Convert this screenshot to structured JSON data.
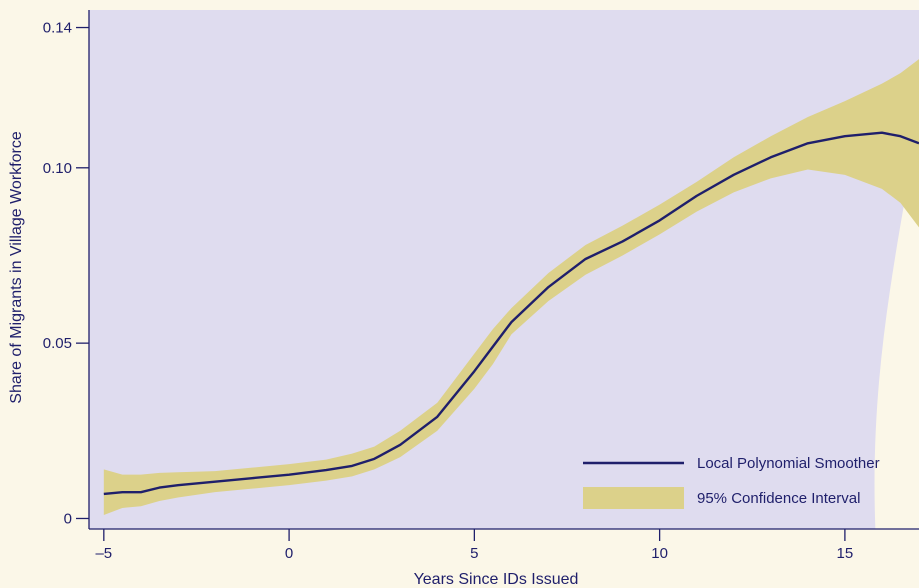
{
  "chart_data": {
    "type": "line",
    "title": "",
    "xlabel": "Years Since IDs Issued",
    "ylabel": "Share of Migrants in Village Workforce",
    "xlim": [
      -5.4,
      17
    ],
    "ylim": [
      -0.003,
      0.145
    ],
    "x_ticks": [
      -5,
      0,
      5,
      10,
      15
    ],
    "x_tick_labels": [
      "–5",
      "0",
      "5",
      "10",
      "15"
    ],
    "y_ticks": [
      0,
      0.05,
      0.1,
      0.14
    ],
    "y_tick_labels": [
      "0",
      "0.05",
      "0.10",
      "0.14"
    ],
    "grid": false,
    "legend_position": "bottom-right",
    "series": [
      {
        "name": "Local Polynomial Smoother",
        "kind": "line",
        "color": "#1f1f6b",
        "x": [
          -5,
          -4.5,
          -4,
          -3.5,
          -3,
          -2,
          -1,
          0,
          1,
          1.7,
          2.3,
          3,
          4,
          5,
          5.5,
          6,
          7,
          8,
          9,
          10,
          11,
          12,
          13,
          14,
          15,
          16,
          16.5,
          17
        ],
        "values": [
          0.007,
          0.0075,
          0.0075,
          0.0088,
          0.0095,
          0.0105,
          0.0115,
          0.0125,
          0.0138,
          0.015,
          0.017,
          0.021,
          0.029,
          0.042,
          0.049,
          0.056,
          0.066,
          0.074,
          0.079,
          0.085,
          0.092,
          0.098,
          0.103,
          0.107,
          0.109,
          0.11,
          0.109,
          0.107
        ]
      },
      {
        "name": "95% Confidence Interval",
        "kind": "band",
        "color": "#dcd18a",
        "x": [
          -5,
          -4.5,
          -4,
          -3.5,
          -3,
          -2,
          -1,
          0,
          1,
          1.7,
          2.3,
          3,
          4,
          5,
          5.5,
          6,
          7,
          8,
          9,
          10,
          11,
          12,
          13,
          14,
          15,
          16,
          16.5,
          17
        ],
        "lower": [
          0.001,
          0.003,
          0.0035,
          0.005,
          0.006,
          0.0075,
          0.0085,
          0.0095,
          0.0108,
          0.012,
          0.014,
          0.0175,
          0.025,
          0.037,
          0.044,
          0.0525,
          0.062,
          0.0695,
          0.075,
          0.081,
          0.0875,
          0.093,
          0.097,
          0.0995,
          0.098,
          0.094,
          0.09,
          0.083
        ],
        "upper": [
          0.014,
          0.0125,
          0.0125,
          0.013,
          0.0132,
          0.0135,
          0.0145,
          0.0155,
          0.0168,
          0.0185,
          0.0205,
          0.025,
          0.033,
          0.047,
          0.054,
          0.06,
          0.07,
          0.078,
          0.0835,
          0.0895,
          0.096,
          0.103,
          0.109,
          0.1145,
          0.119,
          0.124,
          0.127,
          0.131
        ]
      }
    ],
    "colors": {
      "plot_background": "#dfdcef",
      "page_background": "#fbf7e8",
      "axis": "#1f1f6b",
      "line": "#1f1f6b",
      "band": "#dcd18a"
    }
  }
}
